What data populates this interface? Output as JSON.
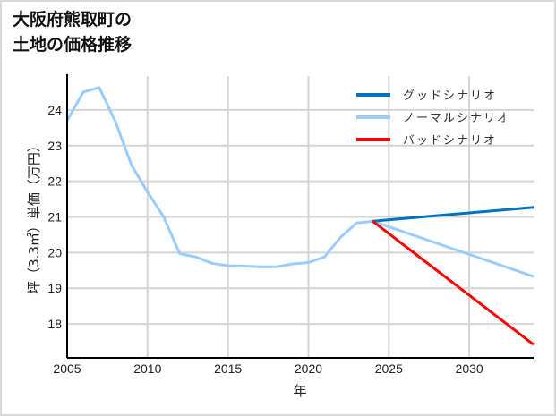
{
  "title_lines": [
    "大阪府熊取町の",
    "土地の価格推移"
  ],
  "chart_data": {
    "type": "line",
    "title": "大阪府熊取町の土地の価格推移",
    "xlabel": "年",
    "ylabel": "坪（3.3㎡）単価（万円）",
    "xlim": [
      2005,
      2034
    ],
    "ylim": [
      17.05,
      24.95
    ],
    "x_ticks": [
      2005,
      2010,
      2015,
      2020,
      2025,
      2030
    ],
    "y_ticks": [
      18,
      19,
      20,
      21,
      22,
      23,
      24
    ],
    "grid": true,
    "legend_position": "upper right",
    "series": [
      {
        "name": "グッドシナリオ",
        "color": "#0070c0",
        "x": [
          2024,
          2034
        ],
        "values": [
          20.88,
          21.27
        ]
      },
      {
        "name": "ノーマルシナリオ",
        "color": "#99ccff",
        "x": [
          2005,
          2006,
          2007,
          2008,
          2009,
          2010,
          2011,
          2012,
          2013,
          2014,
          2015,
          2016,
          2017,
          2018,
          2019,
          2020,
          2021,
          2022,
          2023,
          2024,
          2034
        ],
        "values": [
          23.7,
          24.5,
          24.63,
          23.67,
          22.45,
          21.7,
          21.0,
          19.97,
          19.88,
          19.7,
          19.63,
          19.62,
          19.6,
          19.6,
          19.68,
          19.72,
          19.88,
          20.43,
          20.83,
          20.88,
          19.33
        ]
      },
      {
        "name": "バッドシナリオ",
        "color": "#ff0000",
        "x": [
          2024,
          2034
        ],
        "values": [
          20.88,
          17.42
        ]
      }
    ]
  }
}
